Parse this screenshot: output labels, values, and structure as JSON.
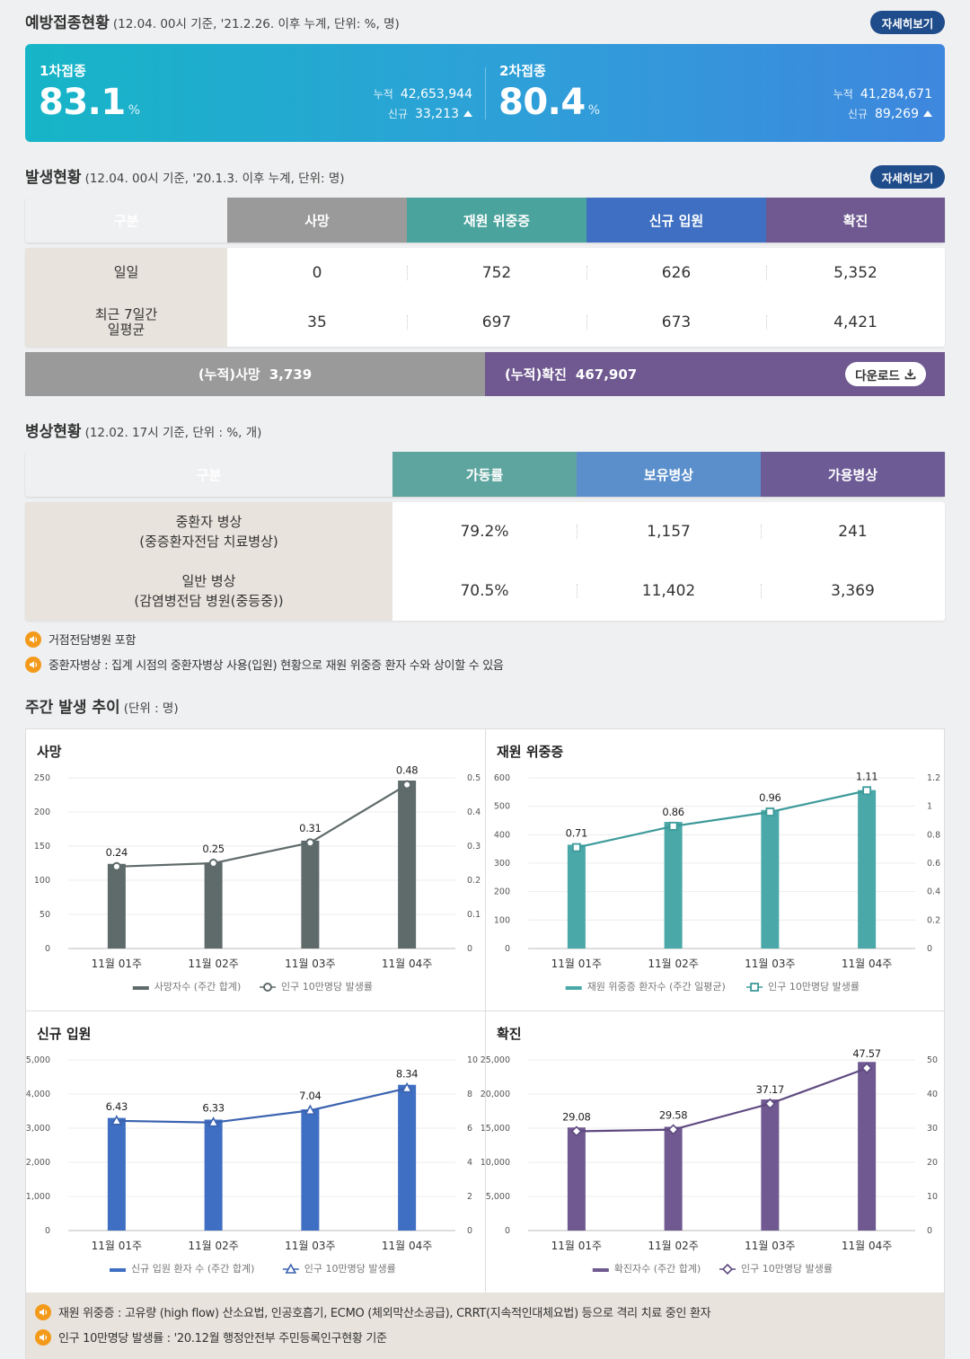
{
  "vaccination": {
    "title": "예방접종현황",
    "subtitle": "(12.04. 00시 기준, '21.2.26. 이후 누계, 단위: %, 명)",
    "more_label": "자세히보기",
    "first": {
      "label": "1차접종",
      "rate": "83.1",
      "unit": "%",
      "cum_key": "누적",
      "cum": "42,653,944",
      "new_key": "신규",
      "new": "33,213"
    },
    "second": {
      "label": "2차접종",
      "rate": "80.4",
      "unit": "%",
      "cum_key": "누적",
      "cum": "41,284,671",
      "new_key": "신규",
      "new": "89,269"
    }
  },
  "occurrence": {
    "title": "발생현황",
    "subtitle": "(12.04. 00시 기준, '20.1.3. 이후 누계, 단위: 명)",
    "more_label": "자세히보기",
    "headers": [
      "구분",
      "사망",
      "재원 위중증",
      "신규 입원",
      "확진"
    ],
    "header_colors": [
      "#e8e3dc",
      "#9a9a9a",
      "#4aa39c",
      "#3f6fc2",
      "#6f5990"
    ],
    "rows": [
      {
        "label": "일일",
        "values": [
          "0",
          "752",
          "626",
          "5,352"
        ]
      },
      {
        "label": "최근 7일간\n일평균",
        "values": [
          "35",
          "697",
          "673",
          "4,421"
        ]
      }
    ],
    "cum_death_label": "(누적)사망",
    "cum_death": "3,739",
    "cum_confirmed_label": "(누적)확진",
    "cum_confirmed": "467,907",
    "download_label": "다운로드"
  },
  "beds": {
    "title": "병상현황",
    "subtitle": "(12.02. 17시 기준, 단위 : %, 개)",
    "headers": [
      "구분",
      "가동률",
      "보유병상",
      "가용병상"
    ],
    "header_colors": [
      "#e8e3dc",
      "#5fa59f",
      "#5b8fcc",
      "#6c5b95"
    ],
    "rows": [
      {
        "label": "중환자 병상\n(중증환자전담 치료병상)",
        "values": [
          "79.2%",
          "1,157",
          "241"
        ]
      },
      {
        "label": "일반 병상\n(감염병전담 병원(중등중))",
        "values": [
          "70.5%",
          "11,402",
          "3,369"
        ]
      }
    ],
    "notes": [
      "거점전담병원 포함",
      "중환자병상 : 집계 시점의 중환자병상 사용(입원) 현황으로 재원 위중증 환자 수와 상이할 수 있음"
    ]
  },
  "weekly": {
    "title": "주간 발생 추이",
    "subtitle": "(단위 : 명)",
    "footnotes": [
      "재원 위중증 : 고유량 (high flow) 산소요법, 인공호흡기, ECMO (체외막산소공급), CRRT(지속적인대체요법) 등으로 격리 치료 중인 환자",
      "인구 10만명당 발생률 : '20.12월 행정안전부 주민등록인구현황 기준"
    ]
  },
  "chart_data": [
    {
      "type": "bar",
      "title": "사망",
      "categories": [
        "11월 01주",
        "11월 02주",
        "11월 03주",
        "11월 04주"
      ],
      "series": [
        {
          "name": "사망자수 (주간 합계)",
          "type": "bar",
          "values": [
            124,
            126,
            158,
            246
          ],
          "axis": "left"
        },
        {
          "name": "인구 10만명당 발생률",
          "type": "line",
          "values": [
            0.24,
            0.25,
            0.31,
            0.48
          ],
          "axis": "right",
          "marker": "circle"
        }
      ],
      "left_ticks": [
        "0",
        "50",
        "100",
        "150",
        "200",
        "250"
      ],
      "right_ticks": [
        "0",
        "0.1",
        "0.2",
        "0.3",
        "0.4",
        "0.5"
      ],
      "ylim": [
        0,
        250
      ],
      "y2lim": [
        0,
        0.5
      ],
      "bar_color": "#5f6a6a",
      "line_color": "#5f6a6a"
    },
    {
      "type": "bar",
      "title": "재원 위중증",
      "categories": [
        "11월 01주",
        "11월 02주",
        "11월 03주",
        "11월 04주"
      ],
      "series": [
        {
          "name": "재원 위중증 환자수 (주간 일평균)",
          "type": "bar",
          "values": [
            365,
            445,
            487,
            557
          ],
          "axis": "left"
        },
        {
          "name": "인구 10만명당 발생률",
          "type": "line",
          "values": [
            0.71,
            0.86,
            0.96,
            1.11
          ],
          "axis": "right",
          "marker": "square"
        }
      ],
      "left_ticks": [
        "0",
        "100",
        "200",
        "300",
        "400",
        "500",
        "600"
      ],
      "right_ticks": [
        "0",
        "0.2",
        "0.4",
        "0.6",
        "0.8",
        "1",
        "1.2"
      ],
      "ylim": [
        0,
        600
      ],
      "y2lim": [
        0,
        1.2
      ],
      "bar_color": "#4aa8a8",
      "line_color": "#3d9a9a"
    },
    {
      "type": "bar",
      "title": "신규 입원",
      "categories": [
        "11월 01주",
        "11월 02주",
        "11월 03주",
        "11월 04주"
      ],
      "series": [
        {
          "name": "신규 입원 환자 수 (주간 합계)",
          "type": "bar",
          "values": [
            3300,
            3250,
            3550,
            4270
          ],
          "axis": "left"
        },
        {
          "name": "인구 10만명당 발생률",
          "type": "line",
          "values": [
            6.43,
            6.33,
            7.04,
            8.34
          ],
          "axis": "right",
          "marker": "triangle"
        }
      ],
      "left_ticks": [
        "0",
        "1,000",
        "2,000",
        "3,000",
        "4,000",
        "5,000"
      ],
      "right_ticks": [
        "0",
        "2",
        "4",
        "6",
        "8",
        "10"
      ],
      "ylim": [
        0,
        5000
      ],
      "y2lim": [
        0,
        10
      ],
      "bar_color": "#3f6fc2",
      "line_color": "#3a62b0"
    },
    {
      "type": "bar",
      "title": "확진",
      "categories": [
        "11월 01주",
        "11월 02주",
        "11월 03주",
        "11월 04주"
      ],
      "series": [
        {
          "name": "확진자수 (주간 합계)",
          "type": "bar",
          "values": [
            15100,
            15200,
            19200,
            24700
          ],
          "axis": "left"
        },
        {
          "name": "인구 10만명당 발생률",
          "type": "line",
          "values": [
            29.08,
            29.58,
            37.17,
            47.57
          ],
          "axis": "right",
          "marker": "diamond"
        }
      ],
      "left_ticks": [
        "0",
        "5,000",
        "10,000",
        "15,000",
        "20,000",
        "25,000"
      ],
      "right_ticks": [
        "0",
        "10",
        "20",
        "30",
        "40",
        "50"
      ],
      "ylim": [
        0,
        25000
      ],
      "y2lim": [
        0,
        50
      ],
      "bar_color": "#6f5990",
      "line_color": "#5e4a80"
    }
  ]
}
